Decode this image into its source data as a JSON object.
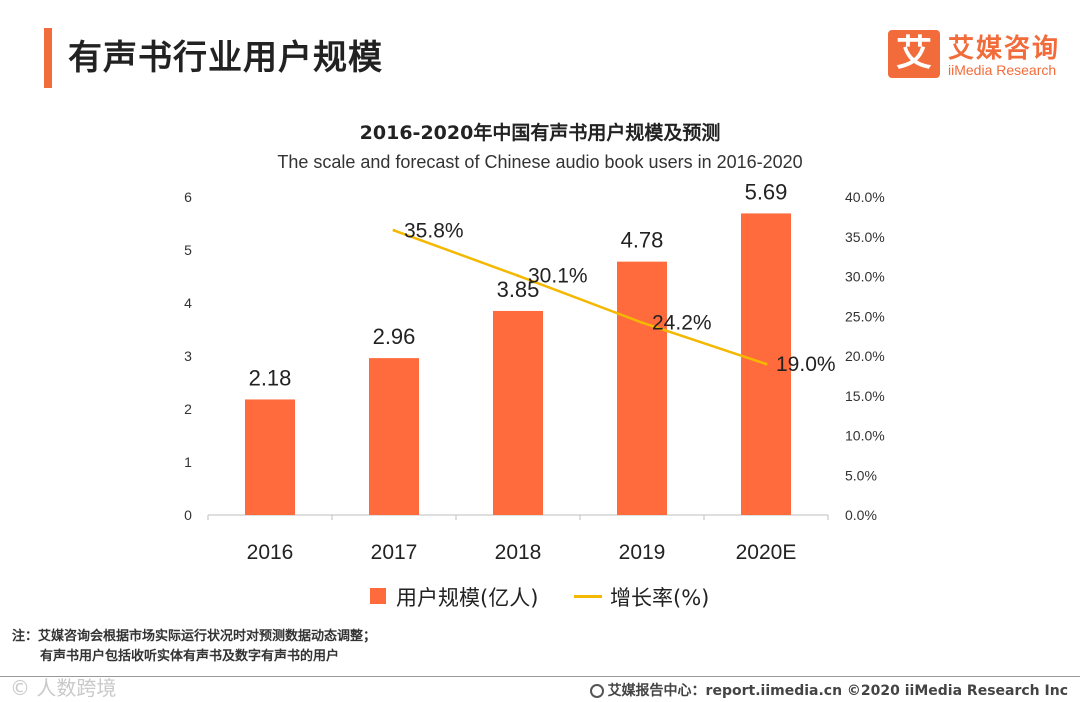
{
  "header": {
    "title": "有声书行业用户规模",
    "logo_mark": "艾",
    "logo_cn": "艾媒咨询",
    "logo_en": "iiMedia Research"
  },
  "chart_data": {
    "type": "bar",
    "title": "2016-2020年中国有声书用户规模及预测",
    "subtitle": "The scale and forecast of Chinese audio book users in 2016-2020",
    "categories": [
      "2016",
      "2017",
      "2018",
      "2019",
      "2020E"
    ],
    "ylim": [
      0,
      6
    ],
    "y_ticks": [
      "0",
      "1",
      "2",
      "3",
      "4",
      "5",
      "6"
    ],
    "y2lim": [
      0,
      40
    ],
    "y2_ticks": [
      "0.0%",
      "5.0%",
      "10.0%",
      "15.0%",
      "20.0%",
      "25.0%",
      "30.0%",
      "35.0%",
      "40.0%"
    ],
    "series": [
      {
        "name": "用户规模(亿人)",
        "type": "bar",
        "axis": "left",
        "color": "#ff6b3d",
        "values": [
          2.18,
          2.96,
          3.85,
          4.78,
          5.69
        ],
        "labels": [
          "2.18",
          "2.96",
          "3.85",
          "4.78",
          "5.69"
        ]
      },
      {
        "name": "增长率(%)",
        "type": "line",
        "axis": "right",
        "color": "#f5b800",
        "values": [
          null,
          35.8,
          30.1,
          24.2,
          19.0
        ],
        "labels": [
          "",
          "35.8%",
          "30.1%",
          "24.2%",
          "19.0%"
        ]
      }
    ],
    "legend_position": "bottom",
    "grid": false
  },
  "note": {
    "line1": "注：艾媒咨询会根据市场实际运行状况时对预测数据动态调整；",
    "line2": "有声书用户包括收听实体有声书及数字有声书的用户"
  },
  "footer": {
    "left_watermark": "© 人数跨境",
    "right_text": "艾媒报告中心：report.iimedia.cn   ©2020  iiMedia Research  Inc"
  }
}
